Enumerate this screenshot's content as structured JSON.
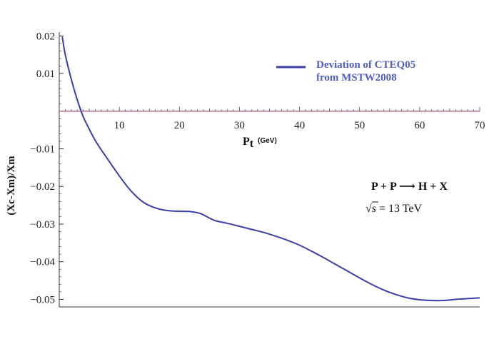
{
  "chart_data": {
    "type": "line",
    "xlabel": "P",
    "xlabel_subscript": "t",
    "xlabel_unit": "(GeV)",
    "ylabel": "(Xc-Xm)/Xm",
    "xlim": [
      0,
      70
    ],
    "ylim": [
      -0.052,
      0.021
    ],
    "xticks": [
      10,
      20,
      30,
      40,
      50,
      60,
      70
    ],
    "yticks": [
      0.02,
      0.01,
      0,
      -0.01,
      -0.02,
      -0.03,
      -0.04,
      -0.05
    ],
    "ytick_labels": [
      "0.02",
      "0.01",
      "",
      "−0.01",
      "−0.02",
      "−0.03",
      "−0.04",
      "−0.05"
    ],
    "grid": false,
    "legend_position": "top-right",
    "series": [
      {
        "name_lines": [
          "Deviation of CTEQ05",
          "from MSTW2008"
        ],
        "color": "#3a3faa",
        "x": [
          0.5,
          1,
          2,
          3,
          4,
          5,
          6,
          7,
          8,
          10,
          12,
          14,
          16,
          18,
          20,
          22,
          23.5,
          25,
          26,
          28,
          30,
          32,
          34,
          36,
          38,
          40,
          42,
          44,
          46,
          48,
          50,
          52,
          54,
          56,
          58,
          60,
          62,
          64,
          66,
          67,
          68,
          69,
          70
        ],
        "y": [
          0.0198,
          0.015,
          0.0085,
          0.003,
          -0.0015,
          -0.0048,
          -0.0078,
          -0.0103,
          -0.0126,
          -0.0172,
          -0.0213,
          -0.0242,
          -0.0257,
          -0.0264,
          -0.0266,
          -0.0267,
          -0.0272,
          -0.0284,
          -0.0291,
          -0.0298,
          -0.0306,
          -0.0314,
          -0.0322,
          -0.0332,
          -0.0343,
          -0.0356,
          -0.0372,
          -0.0389,
          -0.0407,
          -0.0425,
          -0.0443,
          -0.046,
          -0.0475,
          -0.0487,
          -0.0496,
          -0.0501,
          -0.0503,
          -0.0503,
          -0.05,
          -0.0499,
          -0.0498,
          -0.0497,
          -0.0496
        ]
      }
    ],
    "reference_line": {
      "y": 0,
      "color": "#b06a7a"
    },
    "annotations": {
      "process": "P + P ⟶ H + X",
      "energy_sqrt": "√",
      "energy_s": "s",
      "energy_rest": " = 13  TeV"
    },
    "colors": {
      "axis": "#333333",
      "curve": "#3a3faa",
      "reference": "#b06a7a",
      "legend_text": "#4f5fc0"
    }
  }
}
